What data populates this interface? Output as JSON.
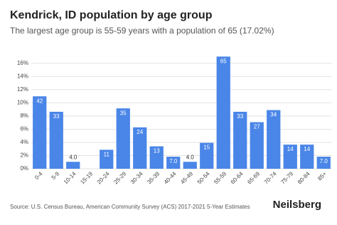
{
  "chart_data": {
    "type": "bar",
    "title": "Kendrick, ID population by age group",
    "subtitle": "The largest age group is 55-59 years with a population of 65 (17.02%)",
    "categories": [
      "0-4",
      "5-9",
      "10-14",
      "15-19",
      "20-24",
      "25-29",
      "30-34",
      "35-39",
      "40-44",
      "45-49",
      "50-54",
      "55-59",
      "60-64",
      "65-69",
      "70-74",
      "75-79",
      "80-84",
      "85+"
    ],
    "values": [
      10.99,
      8.64,
      1.05,
      0,
      2.88,
      9.16,
      6.28,
      3.4,
      1.83,
      1.05,
      3.93,
      17.02,
      8.64,
      7.07,
      8.9,
      3.66,
      3.66,
      1.83
    ],
    "data_labels": [
      "42",
      "33",
      "4.0",
      null,
      "11",
      "35",
      "24",
      "13",
      "7.0",
      "4.0",
      "15",
      "65",
      "33",
      "27",
      "34",
      "14",
      "14",
      "7.0"
    ],
    "color": "#4a86e8",
    "ylim": [
      0,
      17.5
    ],
    "yticks": [
      {
        "value": 0,
        "label": "0%"
      },
      {
        "value": 2,
        "label": "2%"
      },
      {
        "value": 4,
        "label": "4%"
      },
      {
        "value": 6,
        "label": "6%"
      },
      {
        "value": 8,
        "label": "8%"
      },
      {
        "value": 10,
        "label": "10%"
      },
      {
        "value": 12,
        "label": "12%"
      },
      {
        "value": 14,
        "label": "14%"
      },
      {
        "value": 16,
        "label": "16%"
      }
    ],
    "grid": true,
    "source": "Source: U.S. Census Bureau, American Community Survey (ACS) 2017-2021 5-Year Estimates",
    "brand": "Neilsberg"
  }
}
